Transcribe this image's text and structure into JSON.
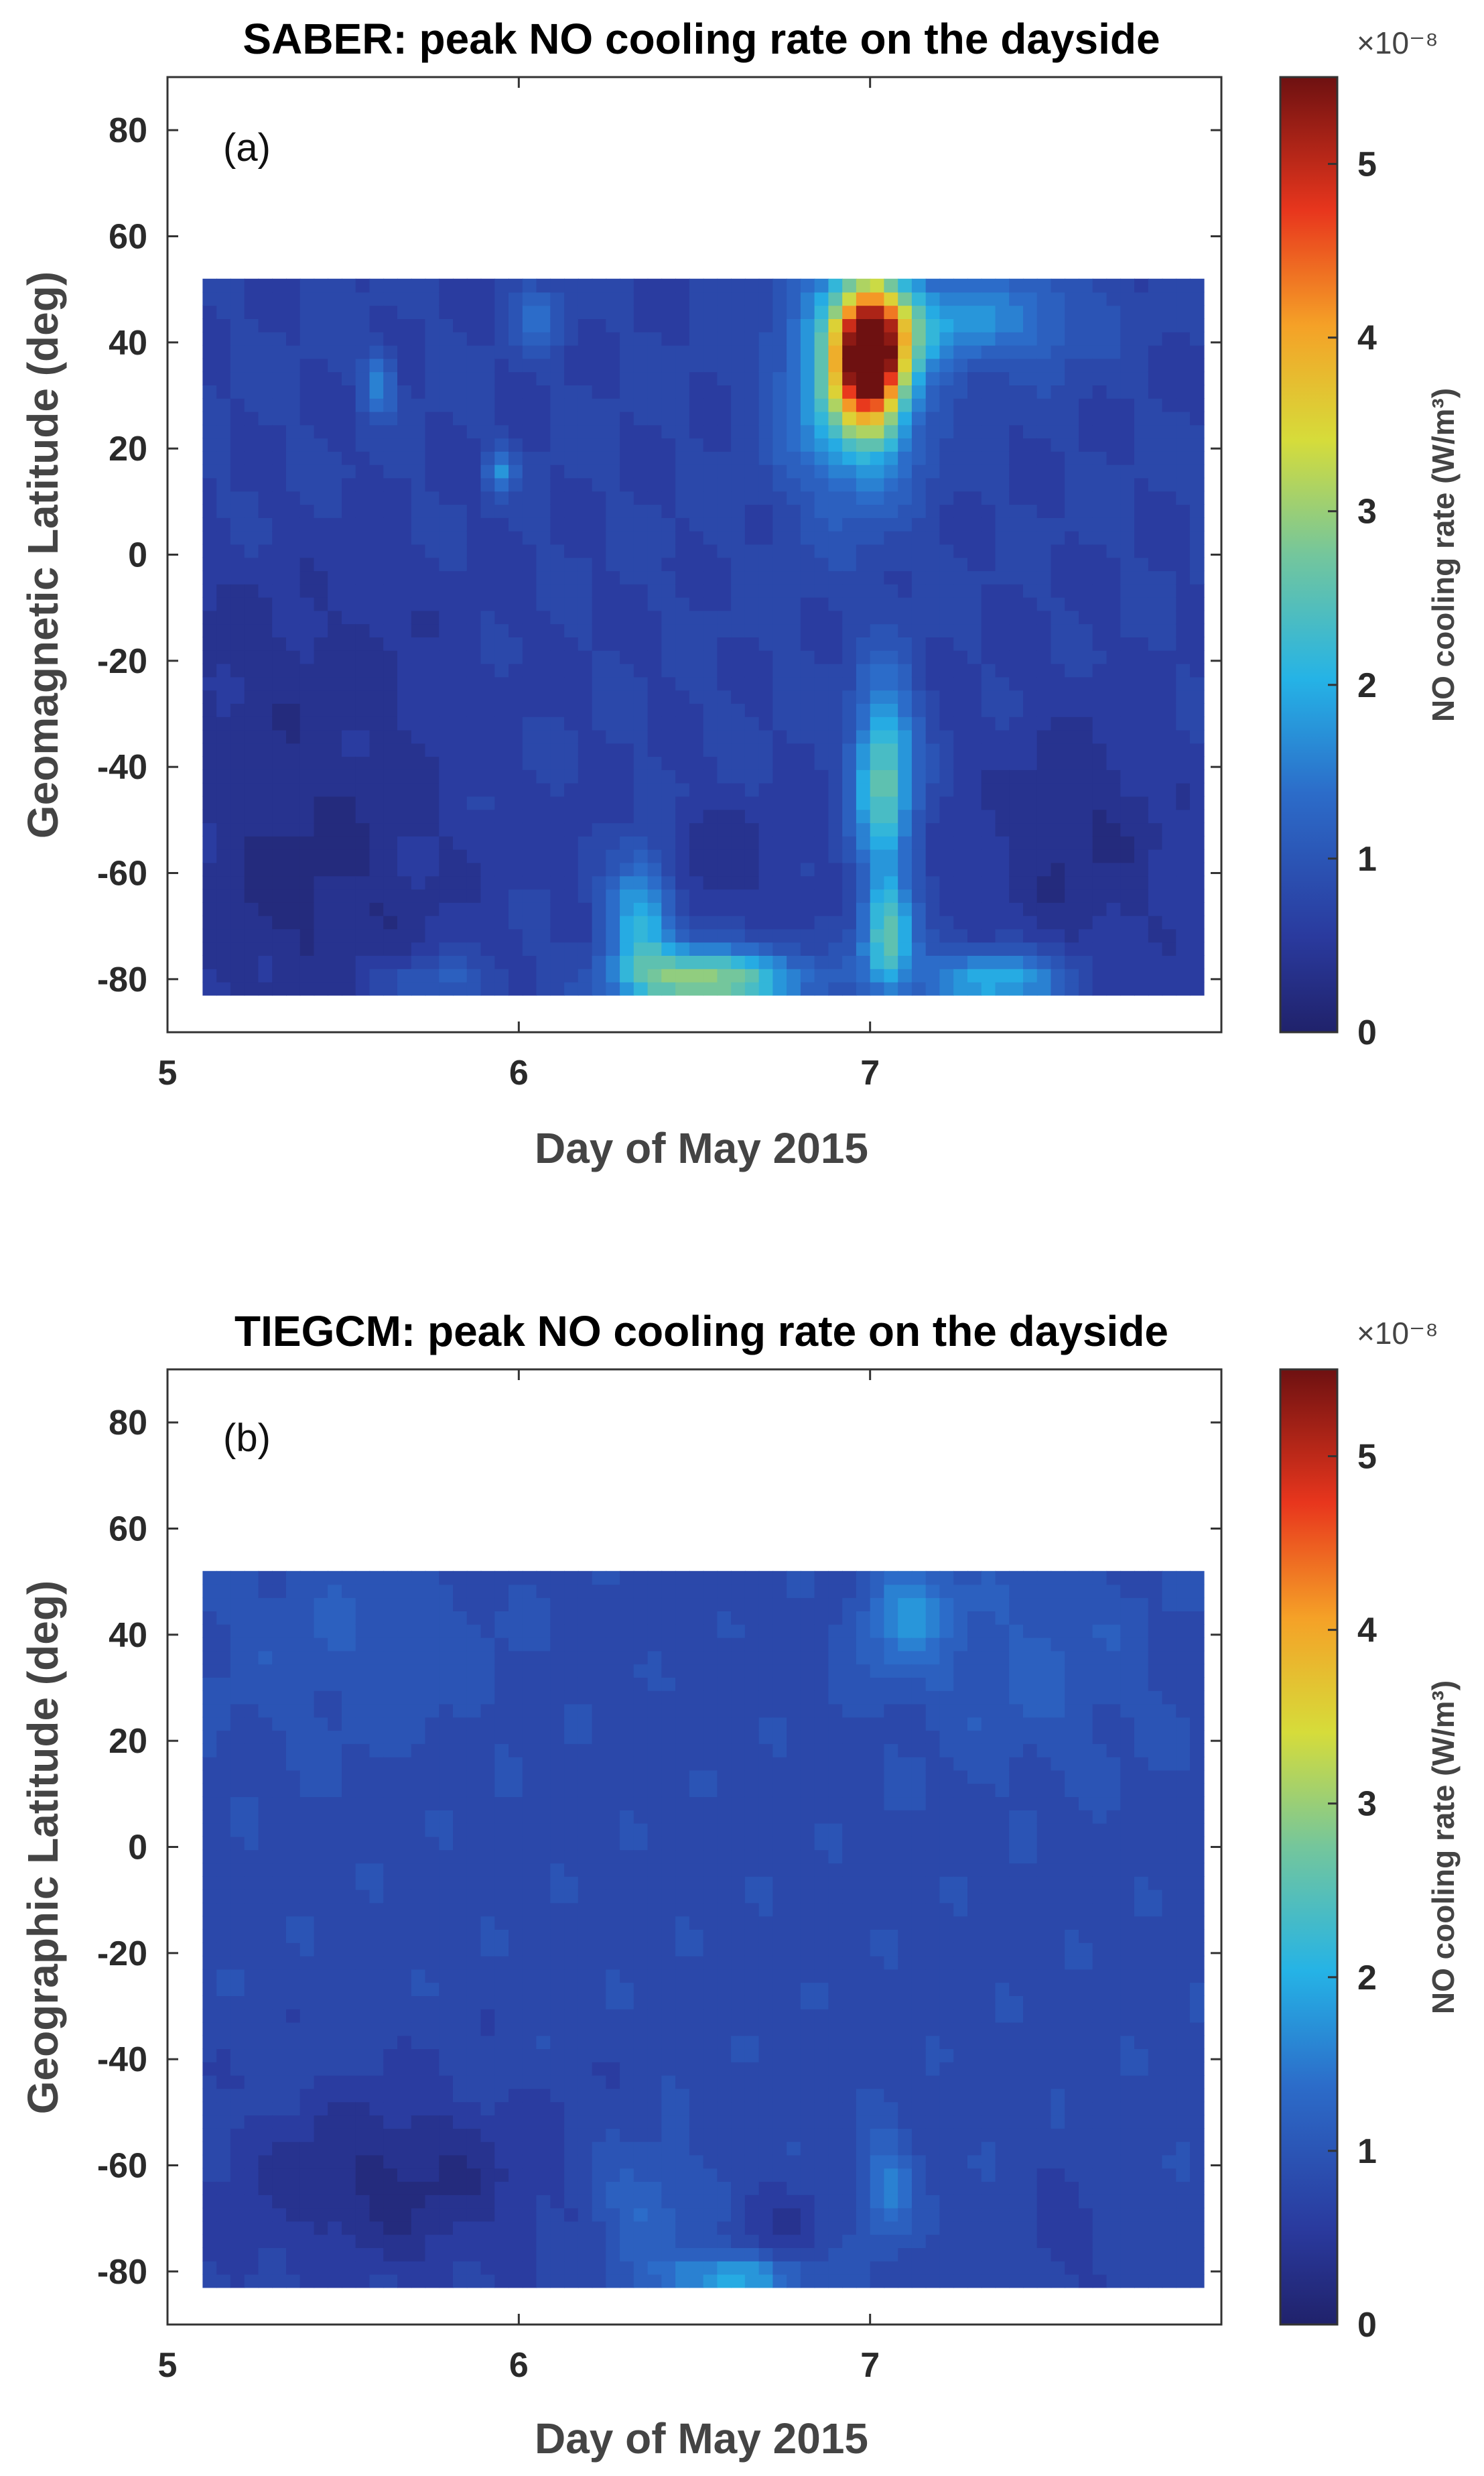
{
  "chart_data": [
    {
      "type": "heatmap",
      "panel_label": "(a)",
      "title": "SABER: peak NO cooling rate on the dayside",
      "xlabel": "Day of May 2015",
      "ylabel": "Geomagnetic Latitude (deg)",
      "xlim": [
        5,
        8
      ],
      "ylim": [
        -90,
        90
      ],
      "x_ticks": [
        "5",
        "6",
        "7"
      ],
      "y_ticks": [
        "80",
        "60",
        "40",
        "20",
        "0",
        "-20",
        "-40",
        "-60",
        "-80"
      ],
      "data_extent": {
        "x": [
          5.1,
          7.95
        ],
        "y": [
          -83,
          52
        ]
      },
      "colorbar": {
        "label": "NO cooling rate (W/m³)",
        "multiplier": "×10⁻⁸",
        "ticks": [
          "5",
          "4",
          "3",
          "2",
          "1",
          "0"
        ],
        "range": [
          0,
          5.5
        ],
        "colormap": "jet"
      },
      "background_value": 0.7,
      "features": [
        {
          "x": 7.0,
          "y": 38,
          "sx": 0.07,
          "sy": 9,
          "amp": 4.7
        },
        {
          "x": 6.95,
          "y": 32,
          "sx": 0.13,
          "sy": 15,
          "amp": 1.6
        },
        {
          "x": 7.18,
          "y": 44,
          "sx": 0.16,
          "sy": 6,
          "amp": 0.9
        },
        {
          "x": 7.04,
          "y": -42,
          "sx": 0.06,
          "sy": 13,
          "amp": 1.9
        },
        {
          "x": 7.05,
          "y": -72,
          "sx": 0.05,
          "sy": 7,
          "amp": 1.8
        },
        {
          "x": 6.55,
          "y": -80,
          "sx": 0.17,
          "sy": 4,
          "amp": 2.3
        },
        {
          "x": 6.35,
          "y": -68,
          "sx": 0.07,
          "sy": 9,
          "amp": 1.5
        },
        {
          "x": 7.35,
          "y": -80,
          "sx": 0.15,
          "sy": 4,
          "amp": 1.4
        },
        {
          "x": 5.75,
          "y": -80,
          "sx": 0.13,
          "sy": 3,
          "amp": 0.5
        },
        {
          "x": 5.4,
          "y": -62,
          "sx": 0.3,
          "sy": 20,
          "amp": -0.45
        },
        {
          "x": 6.5,
          "y": -58,
          "sx": 0.2,
          "sy": 8,
          "amp": -0.35
        },
        {
          "x": 7.6,
          "y": -55,
          "sx": 0.2,
          "sy": 18,
          "amp": -0.4
        },
        {
          "x": 5.3,
          "y": -20,
          "sx": 0.4,
          "sy": 15,
          "amp": -0.25
        },
        {
          "x": 5.6,
          "y": 32,
          "sx": 0.03,
          "sy": 4,
          "amp": 1.0
        },
        {
          "x": 6.05,
          "y": 45,
          "sx": 0.05,
          "sy": 4,
          "amp": 0.6
        },
        {
          "x": 5.95,
          "y": 16,
          "sx": 0.03,
          "sy": 3,
          "amp": 0.9
        },
        {
          "x": 7.45,
          "y": 45,
          "sx": 0.15,
          "sy": 7,
          "amp": 0.55
        }
      ]
    },
    {
      "type": "heatmap",
      "panel_label": "(b)",
      "title": "TIEGCM: peak NO cooling rate on the dayside",
      "xlabel": "Day of May 2015",
      "ylabel": "Geographic Latitude (deg)",
      "xlim": [
        5,
        8
      ],
      "ylim": [
        -90,
        90
      ],
      "x_ticks": [
        "5",
        "6",
        "7"
      ],
      "y_ticks": [
        "80",
        "60",
        "40",
        "20",
        "0",
        "-20",
        "-40",
        "-60",
        "-80"
      ],
      "data_extent": {
        "x": [
          5.1,
          7.95
        ],
        "y": [
          -83,
          52
        ]
      },
      "colorbar": {
        "label": "NO cooling rate (W/m³)",
        "multiplier": "×10⁻⁸",
        "ticks": [
          "5",
          "4",
          "3",
          "2",
          "1",
          "0"
        ],
        "range": [
          0,
          5.5
        ],
        "colormap": "jet"
      },
      "background_value": 0.8,
      "features": [
        {
          "x": 7.1,
          "y": 44,
          "sx": 0.09,
          "sy": 8,
          "amp": 0.8
        },
        {
          "x": 7.45,
          "y": 35,
          "sx": 0.25,
          "sy": 15,
          "amp": 0.3
        },
        {
          "x": 5.5,
          "y": 40,
          "sx": 0.3,
          "sy": 15,
          "amp": 0.25
        },
        {
          "x": 6.6,
          "y": -81,
          "sx": 0.13,
          "sy": 3,
          "amp": 1.2
        },
        {
          "x": 7.05,
          "y": -64,
          "sx": 0.05,
          "sy": 7,
          "amp": 0.8
        },
        {
          "x": 6.35,
          "y": -68,
          "sx": 0.1,
          "sy": 8,
          "amp": 0.5
        },
        {
          "x": 5.65,
          "y": -63,
          "sx": 0.3,
          "sy": 12,
          "amp": -0.55
        },
        {
          "x": 6.75,
          "y": -70,
          "sx": 0.08,
          "sy": 5,
          "amp": -0.3
        },
        {
          "x": 7.55,
          "y": -72,
          "sx": 0.07,
          "sy": 6,
          "amp": -0.25
        },
        {
          "x": 5.2,
          "y": -75,
          "sx": 0.05,
          "sy": 5,
          "amp": -0.2
        }
      ]
    }
  ]
}
